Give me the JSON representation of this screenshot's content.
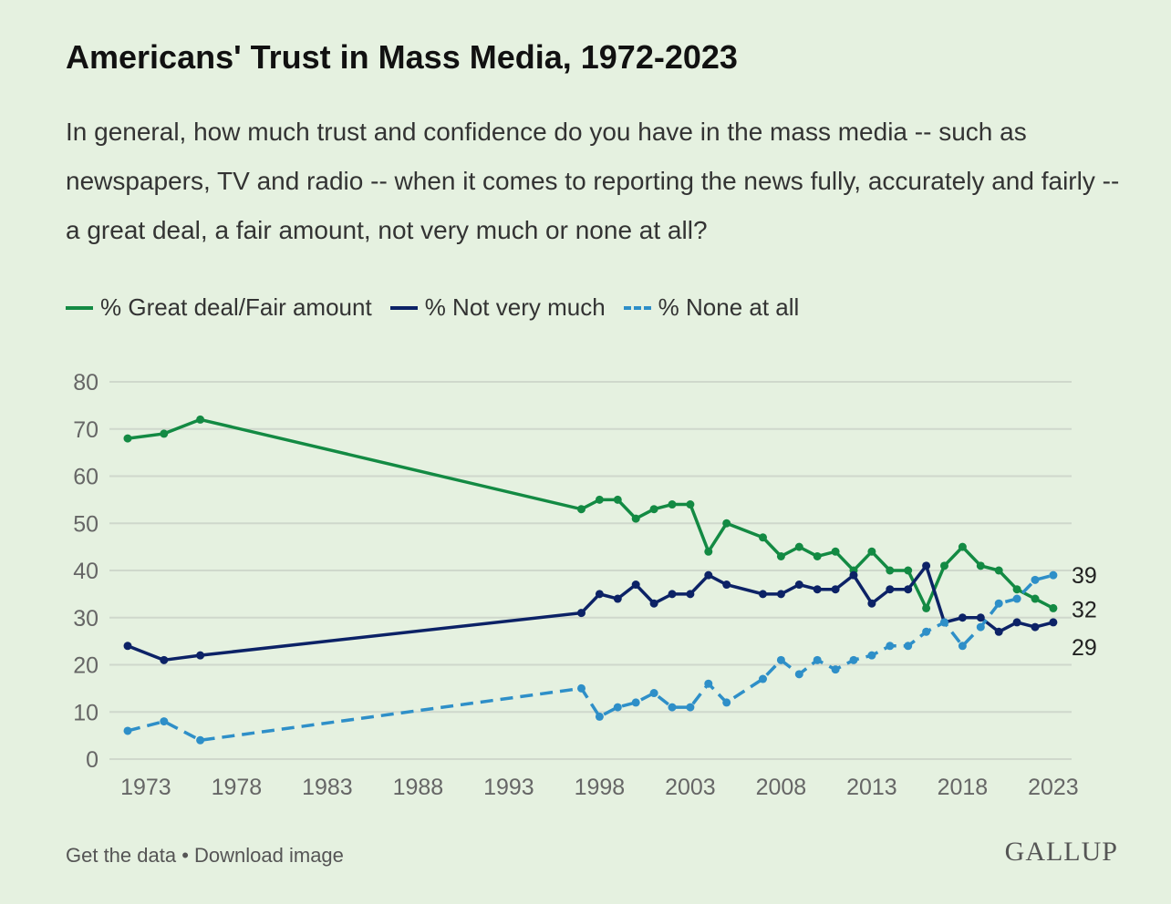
{
  "chart_data": {
    "type": "line",
    "title": "Americans' Trust in Mass Media, 1972-2023",
    "subtitle": "In general, how much trust and confidence do you have in the mass media -- such as newspapers, TV and radio -- when it comes to reporting the news fully, accurately and fairly -- a great deal, a fair amount, not very much or none at all?",
    "xlabel": "",
    "ylabel": "",
    "ylim": [
      0,
      80
    ],
    "xlim": [
      1972,
      2023
    ],
    "yticks": [
      "0",
      "10",
      "20",
      "30",
      "40",
      "50",
      "60",
      "70",
      "80"
    ],
    "xticks": [
      "1973",
      "1978",
      "1983",
      "1988",
      "1993",
      "1998",
      "2003",
      "2008",
      "2013",
      "2018",
      "2023"
    ],
    "grid": true,
    "legend_position": "top-left",
    "x": [
      1972,
      1974,
      1976,
      1997,
      1998,
      1999,
      2000,
      2001,
      2002,
      2003,
      2004,
      2005,
      2007,
      2008,
      2009,
      2010,
      2011,
      2012,
      2013,
      2014,
      2015,
      2016,
      2017,
      2018,
      2019,
      2020,
      2021,
      2022,
      2023
    ],
    "series": [
      {
        "name": "% Great deal/Fair amount",
        "color": "#138a43",
        "dashed": false,
        "end_label": "32",
        "values": [
          68,
          69,
          72,
          53,
          55,
          55,
          51,
          53,
          54,
          54,
          44,
          50,
          47,
          43,
          45,
          43,
          44,
          40,
          44,
          40,
          40,
          32,
          41,
          45,
          41,
          40,
          36,
          34,
          32
        ]
      },
      {
        "name": "% Not very much",
        "color": "#0c2266",
        "dashed": false,
        "end_label": "29",
        "values": [
          24,
          21,
          22,
          31,
          35,
          34,
          37,
          33,
          35,
          35,
          39,
          37,
          35,
          35,
          37,
          36,
          36,
          39,
          33,
          36,
          36,
          41,
          29,
          30,
          30,
          27,
          29,
          28,
          29
        ]
      },
      {
        "name": "% None at all",
        "color": "#2e8fc8",
        "dashed": true,
        "end_label": "39",
        "values": [
          6,
          8,
          4,
          15,
          9,
          11,
          12,
          14,
          11,
          11,
          16,
          12,
          17,
          21,
          18,
          21,
          19,
          21,
          22,
          24,
          24,
          27,
          29,
          24,
          28,
          33,
          34,
          38,
          39
        ]
      }
    ]
  },
  "footer": {
    "get_data": "Get the data",
    "separator": " • ",
    "download": "Download image",
    "logo": "GALLUP"
  }
}
